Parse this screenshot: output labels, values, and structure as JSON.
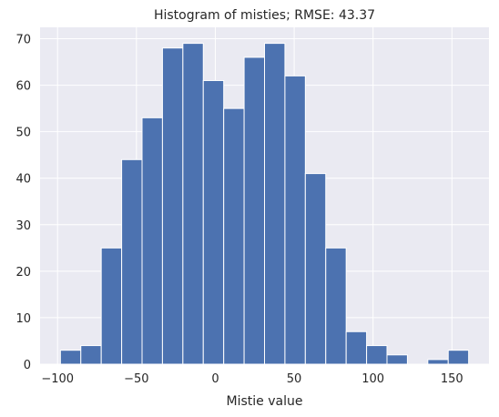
{
  "chart_data": {
    "type": "bar",
    "title": "Histogram of misties; RMSE: 43.37",
    "xlabel": "Mistie value",
    "ylabel": "",
    "bin_edges": [
      -98.2,
      -85.26,
      -72.32,
      -59.38,
      -46.44,
      -33.5,
      -20.56,
      -7.62,
      5.32,
      18.26,
      31.2,
      44.14,
      57.08,
      70.02,
      82.96,
      95.9,
      108.84,
      121.78,
      134.72,
      147.66,
      160.6
    ],
    "values": [
      3,
      4,
      25,
      44,
      53,
      68,
      69,
      61,
      55,
      66,
      69,
      62,
      41,
      25,
      7,
      4,
      2,
      0,
      1,
      3
    ],
    "xlim": [
      -111.1,
      173.5
    ],
    "ylim": [
      0,
      72.45
    ],
    "xticks": [
      -100,
      -50,
      0,
      50,
      100,
      150
    ],
    "xtick_labels": [
      "−100",
      "−50",
      "0",
      "50",
      "100",
      "150"
    ],
    "yticks": [
      0,
      10,
      20,
      30,
      40,
      50,
      60,
      70
    ],
    "ytick_labels": [
      "0",
      "10",
      "20",
      "30",
      "40",
      "50",
      "60",
      "70"
    ],
    "grid": true,
    "colors": {
      "bar": "#4c72b0",
      "background": "#eaeaf2",
      "grid": "#ffffff",
      "text": "#262626"
    }
  }
}
